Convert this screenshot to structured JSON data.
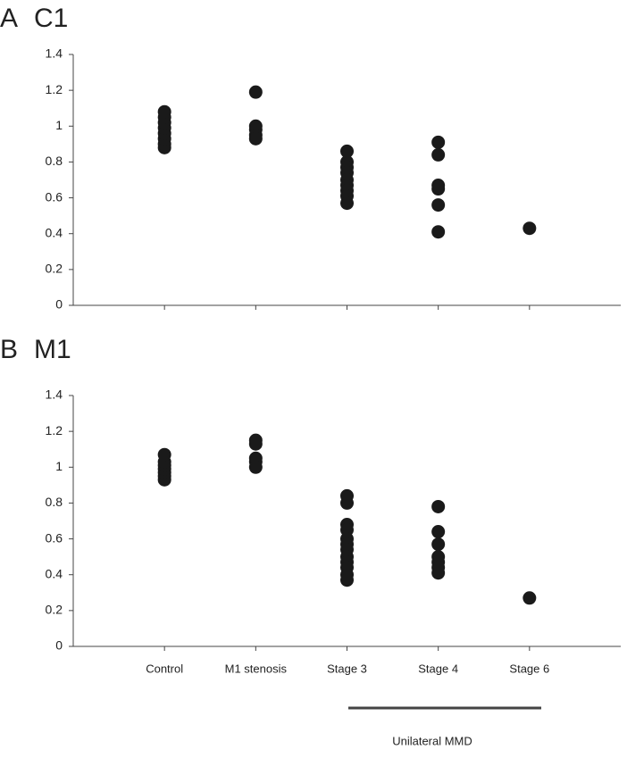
{
  "chart_data": [
    {
      "type": "strip",
      "panel": "A",
      "title": "C1",
      "categories": [
        null,
        null,
        null,
        null,
        null
      ],
      "values": [
        [
          0.88,
          0.9,
          0.93,
          0.96,
          0.99,
          1.02,
          1.05,
          1.08
        ],
        [
          1.19,
          1.0,
          0.98,
          0.95,
          0.93
        ],
        [
          0.86,
          0.8,
          0.77,
          0.74,
          0.7,
          0.67,
          0.64,
          0.61,
          0.57
        ],
        [
          0.91,
          0.84,
          0.67,
          0.65,
          0.56,
          0.41
        ],
        [
          0.43
        ]
      ],
      "color": "#1a1a1a",
      "ylim": [
        0,
        1.4
      ],
      "yticks": [
        0,
        0.2,
        0.4,
        0.6,
        0.8,
        1,
        1.2,
        1.4
      ]
    },
    {
      "type": "strip",
      "panel": "B",
      "title": "M1",
      "categories": [
        "Control",
        "M1 stenosis",
        "Stage 3",
        "Stage 4",
        "Stage 6"
      ],
      "values": [
        [
          0.93,
          0.95,
          0.97,
          0.99,
          1.01,
          1.03,
          1.07
        ],
        [
          1.15,
          1.13,
          1.05,
          1.03,
          1.0
        ],
        [
          0.84,
          0.8,
          0.68,
          0.65,
          0.6,
          0.57,
          0.54,
          0.5,
          0.47,
          0.44,
          0.4,
          0.37
        ],
        [
          0.78,
          0.64,
          0.57,
          0.5,
          0.47,
          0.44,
          0.41
        ],
        [
          0.27
        ]
      ],
      "color": "#1a1a1a",
      "ylim": [
        0,
        1.4
      ],
      "yticks": [
        0,
        0.2,
        0.4,
        0.6,
        0.8,
        1,
        1.2,
        1.4
      ],
      "annotation": "Unilateral MMD"
    }
  ]
}
